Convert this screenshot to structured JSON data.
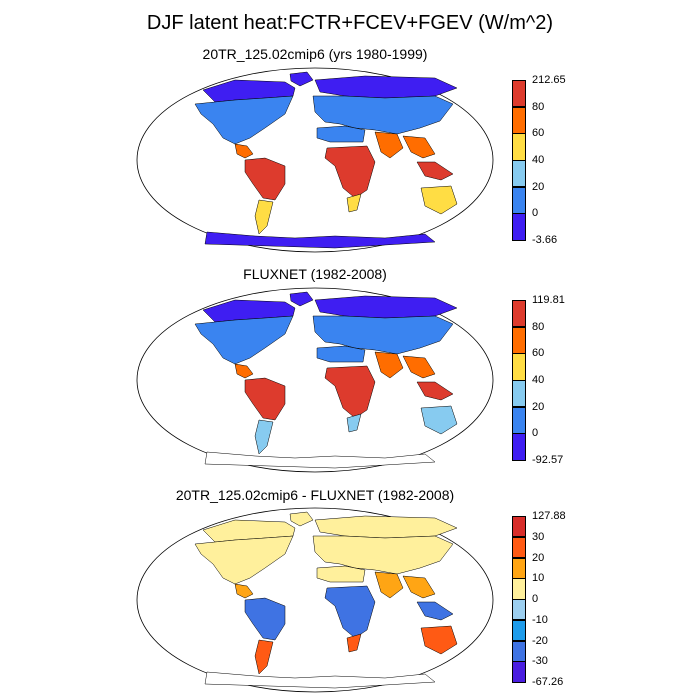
{
  "title": "DJF latent heat:FCTR+FCEV+FGEV (W/m^2)",
  "panels": [
    {
      "title": "20TR_125.02cmip6 (yrs 1980-1999)",
      "colorbar": {
        "labels": [
          "212.65",
          "80",
          "60",
          "40",
          "20",
          "0",
          "-3.66"
        ],
        "colors": [
          "#dd3b2d",
          "#ff6d00",
          "#ffdd44",
          "#87cbf0",
          "#3a84f0",
          "#3f1ef2"
        ]
      },
      "regions": {
        "arctic": "#3f1ef2",
        "north_land": "#3a84f0",
        "tropics": "#dd3b2d",
        "subtropics": "#ff6d00",
        "south_land": "#ffdd44",
        "antarctica": "#3f1ef2"
      }
    },
    {
      "title": "FLUXNET (1982-2008)",
      "colorbar": {
        "labels": [
          "119.81",
          "80",
          "60",
          "40",
          "20",
          "0",
          "-92.57"
        ],
        "colors": [
          "#dd3b2d",
          "#ff6d00",
          "#ffdd44",
          "#87cbf0",
          "#3a84f0",
          "#3f1ef2"
        ]
      },
      "regions": {
        "arctic": "#3f1ef2",
        "north_land": "#3a84f0",
        "tropics": "#dd3b2d",
        "subtropics": "#ff6d00",
        "south_land": "#87cbf0",
        "antarctica": "#ffffff"
      }
    },
    {
      "title": "20TR_125.02cmip6 - FLUXNET (1982-2008)",
      "colorbar": {
        "labels": [
          "127.88",
          "30",
          "20",
          "10",
          "0",
          "-10",
          "-20",
          "-30",
          "-67.26"
        ],
        "colors": [
          "#d72d2a",
          "#ff5a14",
          "#ffa514",
          "#fff09c",
          "#9ccff0",
          "#1e9ceb",
          "#3f73e3",
          "#4a1ee0"
        ]
      },
      "regions": {
        "arctic": "#fff09c",
        "north_land": "#fff09c",
        "tropics": "#3f73e3",
        "subtropics": "#ffa514",
        "south_land": "#ff5a14",
        "antarctica": "#ffffff"
      }
    }
  ]
}
